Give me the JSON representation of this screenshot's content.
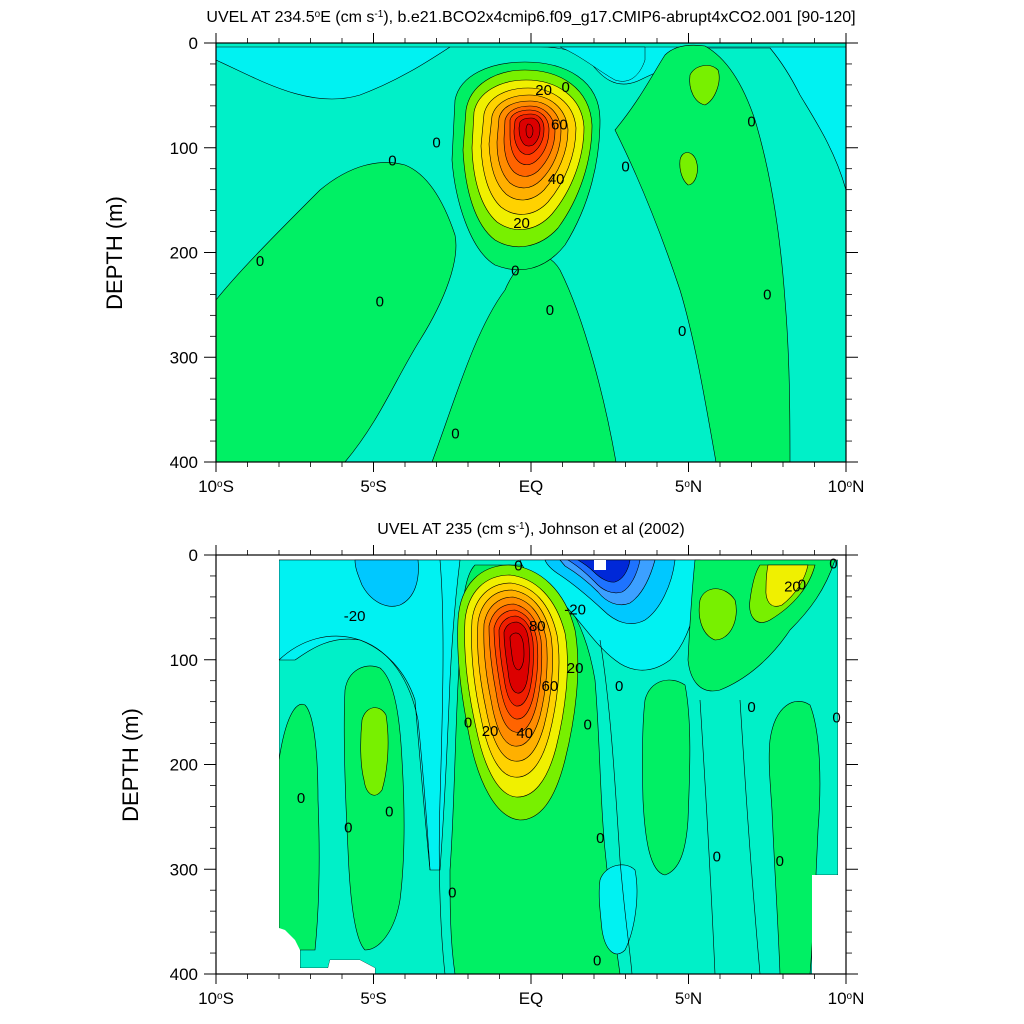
{
  "colors": {
    "cmin60": "#0028d8",
    "cmin40": "#1e73ff",
    "cmin30": "#3ca0ff",
    "cmin20": "#00c8ff",
    "cmin10": "#00f2f2",
    "c0": "#00f0c8",
    "c5": "#00f064",
    "c10": "#78f000",
    "c20": "#f0f000",
    "c30": "#ffd200",
    "c40": "#ffb000",
    "c50": "#ff8c00",
    "c60": "#ff6400",
    "c70": "#ff4000",
    "c80": "#f01e00",
    "c90": "#dc0000",
    "line": "#000000"
  },
  "chart_data": [
    {
      "type": "contour",
      "title": "UVEL AT 234.5°E (cm s⁻¹), b.e21.BCO2x4cmip6.f09_g17.CMIP6-abrupt4xCO2.001 [90-120]",
      "title_parts": {
        "a": "UVEL AT 234.5",
        "deg": "o",
        "b": "E (cm s",
        "sup": "-1",
        "c": "), b.e21.BCO2x4cmip6.f09_g17.CMIP6-abrupt4xCO2.001 [90-120]"
      },
      "ylabel": "DEPTH (m)",
      "x_range": [
        -10,
        10
      ],
      "y_range": [
        400,
        0
      ],
      "x_ticks": [
        -10,
        -5,
        0,
        5,
        10
      ],
      "y_ticks": [
        0,
        100,
        200,
        300,
        400
      ],
      "contour_labels": [
        {
          "text": "20",
          "x": 0.4,
          "y": 45
        },
        {
          "text": "0",
          "x": 1.1,
          "y": 42
        },
        {
          "text": "60",
          "x": 0.9,
          "y": 78
        },
        {
          "text": "0",
          "x": -3.0,
          "y": 95
        },
        {
          "text": "0",
          "x": -4.4,
          "y": 112
        },
        {
          "text": "40",
          "x": 0.8,
          "y": 130
        },
        {
          "text": "0",
          "x": 3.0,
          "y": 118
        },
        {
          "text": "0",
          "x": 7.0,
          "y": 75
        },
        {
          "text": "20",
          "x": -0.3,
          "y": 172
        },
        {
          "text": "0",
          "x": -8.6,
          "y": 208
        },
        {
          "text": "0",
          "x": -0.5,
          "y": 217
        },
        {
          "text": "0",
          "x": -4.8,
          "y": 247
        },
        {
          "text": "0",
          "x": 0.6,
          "y": 255
        },
        {
          "text": "0",
          "x": 4.8,
          "y": 275
        },
        {
          "text": "0",
          "x": 7.5,
          "y": 240
        },
        {
          "text": "0",
          "x": -2.4,
          "y": 373
        }
      ]
    },
    {
      "type": "contour",
      "title": "UVEL AT 235 (cm s⁻¹), Johnson et al (2002)",
      "title_parts": {
        "a": "UVEL AT 235 (cm s",
        "sup": "-1",
        "b": "), Johnson et al (2002)"
      },
      "ylabel": "DEPTH (m)",
      "x_range": [
        -10,
        10
      ],
      "y_range": [
        400,
        0
      ],
      "x_ticks": [
        -10,
        -5,
        0,
        5,
        10
      ],
      "y_ticks": [
        0,
        100,
        200,
        300,
        400
      ],
      "contour_labels": [
        {
          "text": "0",
          "x": -0.4,
          "y": 10
        },
        {
          "text": "-20",
          "x": -5.6,
          "y": 58
        },
        {
          "text": "-20",
          "x": 1.4,
          "y": 52
        },
        {
          "text": "80",
          "x": 0.2,
          "y": 68
        },
        {
          "text": "20",
          "x": 1.4,
          "y": 108
        },
        {
          "text": "60",
          "x": 0.6,
          "y": 125
        },
        {
          "text": "0",
          "x": 2.8,
          "y": 125
        },
        {
          "text": "0",
          "x": 8.6,
          "y": 28
        },
        {
          "text": "20",
          "x": 8.3,
          "y": 30
        },
        {
          "text": "0",
          "x": 9.6,
          "y": 8
        },
        {
          "text": "0",
          "x": -2.0,
          "y": 160
        },
        {
          "text": "20",
          "x": -1.3,
          "y": 168
        },
        {
          "text": "40",
          "x": -0.2,
          "y": 170
        },
        {
          "text": "0",
          "x": 1.8,
          "y": 162
        },
        {
          "text": "0",
          "x": 7.0,
          "y": 145
        },
        {
          "text": "0",
          "x": 9.7,
          "y": 155
        },
        {
          "text": "0",
          "x": -7.3,
          "y": 232
        },
        {
          "text": "0",
          "x": -4.5,
          "y": 245
        },
        {
          "text": "0",
          "x": -5.8,
          "y": 260
        },
        {
          "text": "0",
          "x": 2.2,
          "y": 270
        },
        {
          "text": "0",
          "x": 5.9,
          "y": 288
        },
        {
          "text": "0",
          "x": 7.9,
          "y": 292
        },
        {
          "text": "0",
          "x": -2.5,
          "y": 322
        },
        {
          "text": "0",
          "x": 2.1,
          "y": 387
        }
      ]
    }
  ]
}
